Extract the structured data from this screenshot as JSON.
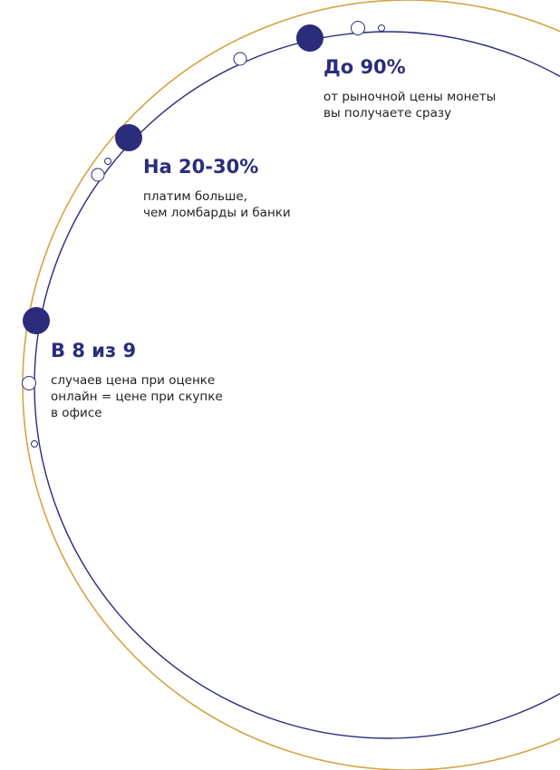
{
  "colors": {
    "accent": "#2b2c7c",
    "gold": "#d4a445",
    "text": "#222222"
  },
  "items": [
    {
      "headline": "До 90%",
      "description": "от рыночной цены монеты\nвы получаете сразу"
    },
    {
      "headline": "На 20-30%",
      "description": "платим больше,\nчем ломбарды и банки"
    },
    {
      "headline": "В 8 из 9",
      "description": "случаев цена при оценке\nонлайн = цене при скупке\nв офисе"
    }
  ]
}
